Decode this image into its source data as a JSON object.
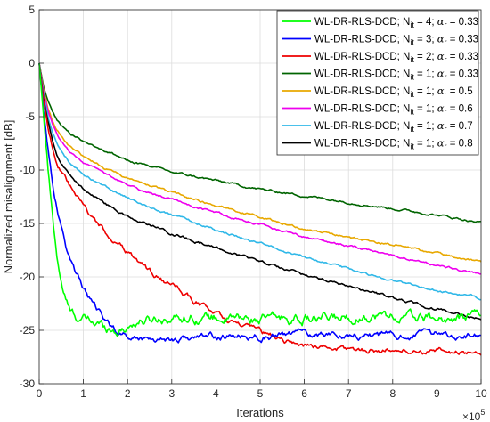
{
  "chart_data": {
    "type": "line",
    "xlabel": "Iterations",
    "ylabel": "Normalized misalignment [dB]",
    "x_exponent_label": "×10",
    "x_exponent_power": "5",
    "xlim": [
      0,
      10
    ],
    "ylim": [
      -30,
      5
    ],
    "x_ticks": [
      "0",
      "1",
      "2",
      "3",
      "4",
      "5",
      "6",
      "7",
      "8",
      "9",
      "10"
    ],
    "y_ticks": [
      "5",
      "0",
      "-5",
      "-10",
      "-15",
      "-20",
      "-25",
      "-30"
    ],
    "grid": true,
    "legend_position": "top-right",
    "series": [
      {
        "name": "WL-DR-RLS-DCD; N_it = 4; α_r = 0.33",
        "legend_main": "WL-DR-RLS-DCD; N",
        "legend_sub1": "it",
        "legend_mid": " = 4; ",
        "legend_alpha": "α",
        "legend_sub2": "r",
        "legend_end": " = 0.33",
        "color": "#00ff00",
        "noise": 0.45,
        "x": [
          0,
          0.1,
          0.2,
          0.3,
          0.4,
          0.5,
          0.6,
          0.7,
          0.8,
          1.0,
          1.2,
          1.5,
          1.8,
          2.2,
          2.8,
          3.5,
          4.5,
          5.5,
          6.5,
          7.5,
          8.5,
          9.5,
          10
        ],
        "y": [
          0,
          -5,
          -10,
          -14.5,
          -18,
          -20.5,
          -22.2,
          -23.3,
          -23.7,
          -24,
          -24.3,
          -24.6,
          -25,
          -24.2,
          -23.8,
          -23.7,
          -24.0,
          -23.9,
          -24.0,
          -23.6,
          -23.8,
          -24.1,
          -23.2
        ]
      },
      {
        "name": "WL-DR-RLS-DCD; N_it = 3; α_r = 0.33",
        "legend_main": "WL-DR-RLS-DCD; N",
        "legend_sub1": "it",
        "legend_mid": " = 3; ",
        "legend_alpha": "α",
        "legend_sub2": "r",
        "legend_end": " = 0.33",
        "color": "#0000ff",
        "noise": 0.3,
        "x": [
          0,
          0.1,
          0.2,
          0.3,
          0.4,
          0.5,
          0.6,
          0.8,
          1.0,
          1.2,
          1.5,
          1.8,
          2.0,
          2.5,
          3.0,
          4.0,
          5.0,
          6.0,
          7.0,
          8.0,
          9.0,
          10
        ],
        "y": [
          0,
          -4.5,
          -8,
          -11,
          -13.5,
          -15.5,
          -17,
          -19.3,
          -21,
          -22.5,
          -24.2,
          -25.2,
          -25.6,
          -25.8,
          -25.8,
          -25.6,
          -25.6,
          -25.3,
          -25.4,
          -25.5,
          -25.3,
          -25.6
        ]
      },
      {
        "name": "WL-DR-RLS-DCD; N_it = 2; α_r = 0.33",
        "legend_main": "WL-DR-RLS-DCD; N",
        "legend_sub1": "it",
        "legend_mid": " = 2; ",
        "legend_alpha": "α",
        "legend_sub2": "r",
        "legend_end": " = 0.33",
        "color": "#ee0000",
        "noise": 0.25,
        "x": [
          0,
          0.1,
          0.2,
          0.3,
          0.4,
          0.5,
          0.6,
          0.8,
          1.0,
          1.2,
          1.5,
          2.0,
          2.5,
          3.0,
          3.5,
          4.0,
          4.5,
          5.0,
          5.5,
          6.0,
          7.0,
          8.0,
          9.0,
          10
        ],
        "y": [
          0,
          -3.5,
          -6,
          -7.8,
          -9.2,
          -10.2,
          -11,
          -12.3,
          -13.5,
          -14.5,
          -15.8,
          -17.7,
          -19.5,
          -20.9,
          -22.2,
          -23.4,
          -24.5,
          -25.2,
          -25.9,
          -26.4,
          -26.8,
          -26.9,
          -27,
          -27.1
        ]
      },
      {
        "name": "WL-DR-RLS-DCD; N_it = 1; α_r = 0.33",
        "legend_main": "WL-DR-RLS-DCD; N",
        "legend_sub1": "it",
        "legend_mid": " = 1; ",
        "legend_alpha": "α",
        "legend_sub2": "r",
        "legend_end": " = 0.33",
        "color": "#006400",
        "noise": 0.1,
        "x": [
          0,
          0.1,
          0.2,
          0.3,
          0.4,
          0.5,
          0.7,
          1.0,
          1.5,
          2.0,
          3.0,
          4.0,
          5.0,
          6.0,
          7.0,
          8.0,
          9.0,
          10
        ],
        "y": [
          0,
          -2.2,
          -3.6,
          -4.6,
          -5.3,
          -5.8,
          -6.5,
          -7.3,
          -8.2,
          -9.1,
          -10.2,
          -11.0,
          -11.8,
          -12.4,
          -13.0,
          -13.6,
          -14.2,
          -14.9
        ]
      },
      {
        "name": "WL-DR-RLS-DCD; N_it = 1; α_r = 0.5",
        "legend_main": "WL-DR-RLS-DCD; N",
        "legend_sub1": "it",
        "legend_mid": " = 1; ",
        "legend_alpha": "α",
        "legend_sub2": "r",
        "legend_end": " = 0.5",
        "color": "#e8a800",
        "noise": 0.1,
        "x": [
          0,
          0.1,
          0.2,
          0.3,
          0.4,
          0.5,
          0.7,
          1.0,
          1.5,
          2.0,
          3.0,
          4.0,
          5.0,
          6.0,
          7.0,
          8.0,
          9.0,
          10
        ],
        "y": [
          0,
          -2.5,
          -4.2,
          -5.4,
          -6.3,
          -6.9,
          -7.8,
          -8.7,
          -9.8,
          -10.8,
          -12.1,
          -13.3,
          -14.4,
          -15.5,
          -16.3,
          -17.0,
          -17.8,
          -18.6
        ]
      },
      {
        "name": "WL-DR-RLS-DCD; N_it = 1; α_r = 0.6",
        "legend_main": "WL-DR-RLS-DCD; N",
        "legend_sub1": "it",
        "legend_mid": " = 1; ",
        "legend_alpha": "α",
        "legend_sub2": "r",
        "legend_end": " = 0.6",
        "color": "#ee00ee",
        "noise": 0.1,
        "x": [
          0,
          0.1,
          0.2,
          0.3,
          0.4,
          0.5,
          0.7,
          1.0,
          1.5,
          2.0,
          3.0,
          4.0,
          5.0,
          6.0,
          7.0,
          8.0,
          9.0,
          10
        ],
        "y": [
          0,
          -2.7,
          -4.5,
          -5.8,
          -6.7,
          -7.4,
          -8.3,
          -9.3,
          -10.4,
          -11.4,
          -12.8,
          -14.0,
          -15.1,
          -16.2,
          -17.1,
          -18.0,
          -18.9,
          -19.8
        ]
      },
      {
        "name": "WL-DR-RLS-DCD; N_it = 1; α_r = 0.7",
        "legend_main": "WL-DR-RLS-DCD; N",
        "legend_sub1": "it",
        "legend_mid": " = 1; ",
        "legend_alpha": "α",
        "legend_sub2": "r",
        "legend_end": " = 0.7",
        "color": "#30b8e8",
        "noise": 0.1,
        "x": [
          0,
          0.1,
          0.2,
          0.3,
          0.4,
          0.5,
          0.7,
          1.0,
          1.5,
          2.0,
          3.0,
          4.0,
          5.0,
          6.0,
          7.0,
          8.0,
          9.0,
          10
        ],
        "y": [
          0,
          -3.0,
          -5.0,
          -6.5,
          -7.5,
          -8.2,
          -9.3,
          -10.4,
          -11.6,
          -12.6,
          -14.2,
          -15.6,
          -16.9,
          -18.2,
          -19.3,
          -20.3,
          -21.3,
          -22.0
        ]
      },
      {
        "name": "WL-DR-RLS-DCD; N_it = 1; α_r = 0.8",
        "legend_main": "WL-DR-RLS-DCD; N",
        "legend_sub1": "it",
        "legend_mid": " = 1; ",
        "legend_alpha": "α",
        "legend_sub2": "r",
        "legend_end": " = 0.8",
        "color": "#000000",
        "noise": 0.12,
        "x": [
          0,
          0.1,
          0.2,
          0.3,
          0.4,
          0.5,
          0.7,
          1.0,
          1.5,
          2.0,
          3.0,
          4.0,
          5.0,
          6.0,
          7.0,
          8.0,
          9.0,
          10
        ],
        "y": [
          0,
          -3.3,
          -5.6,
          -7.2,
          -8.4,
          -9.3,
          -10.6,
          -11.8,
          -13.2,
          -14.3,
          -15.9,
          -17.3,
          -18.6,
          -19.8,
          -20.9,
          -22.0,
          -23.0,
          -24.0
        ]
      }
    ]
  }
}
